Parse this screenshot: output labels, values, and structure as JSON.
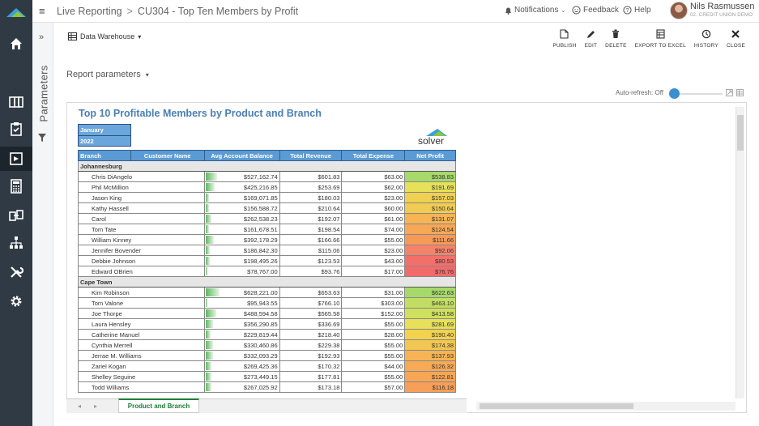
{
  "nav": {
    "breadcrumb_root": "Live Reporting",
    "breadcrumb_sep": ">",
    "breadcrumb_page": "CU304 - Top Ten Members by Profit"
  },
  "topbar": {
    "notifications": "Notifications",
    "feedback": "Feedback",
    "help": "Help",
    "user_name": "Nils Rasmussen",
    "user_org": "02. CREDIT UNION DEMO"
  },
  "sidebar": {
    "parameters_label": "Parameters",
    "items": [
      {
        "icon": "home-icon"
      },
      {
        "icon": "org-chart-icon"
      },
      {
        "icon": "clipboard-icon"
      },
      {
        "icon": "report-icon"
      },
      {
        "icon": "calculator-icon"
      },
      {
        "icon": "data-transfer-icon"
      },
      {
        "icon": "hierarchy-icon"
      },
      {
        "icon": "tools-icon"
      },
      {
        "icon": "gear-icon"
      }
    ]
  },
  "toolbar": {
    "data_source": "Data Warehouse",
    "report_parameters": "Report parameters",
    "auto_refresh": "Auto-refresh: Off",
    "actions": [
      {
        "label": "PUBLISH",
        "icon": "publish-icon"
      },
      {
        "label": "EDIT",
        "icon": "pencil-icon"
      },
      {
        "label": "DELETE",
        "icon": "trash-icon"
      },
      {
        "label": "EXPORT TO EXCEL",
        "icon": "excel-export-icon"
      },
      {
        "label": "HISTORY",
        "icon": "history-icon"
      },
      {
        "label": "CLOSE",
        "icon": "close-icon"
      }
    ]
  },
  "report": {
    "title": "Top 10 Profitable Members by Product and Branch",
    "period_month": "January",
    "period_year": "2022",
    "logo_text": "solver",
    "headers": [
      "Branch",
      "Customer Name",
      "Avg Account Balance",
      "Total Revenue",
      "Total Expense",
      "Net Profit"
    ],
    "groups": [
      {
        "branch": "Johannesburg",
        "rows": [
          {
            "name": "Chris DiAngelo",
            "balance": "$527,162.74",
            "balance_fill": 0.84,
            "revenue": "$601.83",
            "expense": "$63.00",
            "profit": "$538.83",
            "profit_color": "#a6d96a"
          },
          {
            "name": "Phil McMillion",
            "balance": "$425,216.85",
            "balance_fill": 0.68,
            "revenue": "$253.69",
            "expense": "$62.00",
            "profit": "$191.69",
            "profit_color": "#e6e05a"
          },
          {
            "name": "Jason King",
            "balance": "$169,071.85",
            "balance_fill": 0.27,
            "revenue": "$180.03",
            "expense": "$23.00",
            "profit": "$157.03",
            "profit_color": "#f0d050"
          },
          {
            "name": "Kathy Hassell",
            "balance": "$156,588.72",
            "balance_fill": 0.25,
            "revenue": "$210.64",
            "expense": "$60.00",
            "profit": "$150.64",
            "profit_color": "#f2cc52"
          },
          {
            "name": "Carol",
            "balance": "$262,538.23",
            "balance_fill": 0.42,
            "revenue": "$192.07",
            "expense": "$61.00",
            "profit": "$131.07",
            "profit_color": "#f6b454"
          },
          {
            "name": "Tom Tate",
            "balance": "$161,678.51",
            "balance_fill": 0.26,
            "revenue": "$198.54",
            "expense": "$74.00",
            "profit": "$124.54",
            "profit_color": "#f7a856"
          },
          {
            "name": "William Kinney",
            "balance": "$392,178.29",
            "balance_fill": 0.62,
            "revenue": "$166.66",
            "expense": "$55.00",
            "profit": "$111.66",
            "profit_color": "#f79a58"
          },
          {
            "name": "Jennifer Bovender",
            "balance": "$186,842.30",
            "balance_fill": 0.3,
            "revenue": "$115.06",
            "expense": "$23.00",
            "profit": "$92.06",
            "profit_color": "#f5836a"
          },
          {
            "name": "Debbie Johnson",
            "balance": "$198,495.26",
            "balance_fill": 0.32,
            "revenue": "$123.53",
            "expense": "$43.00",
            "profit": "$80.53",
            "profit_color": "#f3706a"
          },
          {
            "name": "Edward OBrien",
            "balance": "$78,767.00",
            "balance_fill": 0.13,
            "revenue": "$93.76",
            "expense": "$17.00",
            "profit": "$76.76",
            "profit_color": "#f26a6a"
          }
        ]
      },
      {
        "branch": "Cape Town",
        "rows": [
          {
            "name": "Kim Robinson",
            "balance": "$628,221.00",
            "balance_fill": 1.0,
            "revenue": "$653.63",
            "expense": "$31.00",
            "profit": "$622.63",
            "profit_color": "#a6d96a"
          },
          {
            "name": "Tom Valone",
            "balance": "$95,943.55",
            "balance_fill": 0.15,
            "revenue": "$766.10",
            "expense": "$303.00",
            "profit": "$463.10",
            "profit_color": "#c2de62"
          },
          {
            "name": "Joe Thorpe",
            "balance": "$488,594.58",
            "balance_fill": 0.78,
            "revenue": "$565.58",
            "expense": "$152.00",
            "profit": "$413.58",
            "profit_color": "#cfe05e"
          },
          {
            "name": "Laura Hensley",
            "balance": "$356,290.85",
            "balance_fill": 0.57,
            "revenue": "$336.69",
            "expense": "$55.00",
            "profit": "$281.69",
            "profit_color": "#e6e05a"
          },
          {
            "name": "Catherine Manuel",
            "balance": "$229,819.44",
            "balance_fill": 0.37,
            "revenue": "$218.40",
            "expense": "$28.00",
            "profit": "$190.40",
            "profit_color": "#f2d24e"
          },
          {
            "name": "Cynthia Merrell",
            "balance": "$330,460.86",
            "balance_fill": 0.53,
            "revenue": "$229.38",
            "expense": "$55.00",
            "profit": "$174.38",
            "profit_color": "#f2c652"
          },
          {
            "name": "Jerrae M. Williams",
            "balance": "$332,093.29",
            "balance_fill": 0.53,
            "revenue": "$192.93",
            "expense": "$55.00",
            "profit": "$137.93",
            "profit_color": "#f6b454"
          },
          {
            "name": "Zariel Kogan",
            "balance": "$269,425.36",
            "balance_fill": 0.43,
            "revenue": "$170.32",
            "expense": "$44.00",
            "profit": "$126.32",
            "profit_color": "#f7aa56"
          },
          {
            "name": "Shelley Seguine",
            "balance": "$273,449.15",
            "balance_fill": 0.44,
            "revenue": "$177.81",
            "expense": "$55.00",
            "profit": "$122.81",
            "profit_color": "#f7a656"
          },
          {
            "name": "Todd Williams",
            "balance": "$267,025.92",
            "balance_fill": 0.43,
            "revenue": "$173.18",
            "expense": "$57.00",
            "profit": "$116.18",
            "profit_color": "#f79f58"
          }
        ]
      }
    ]
  },
  "sheet": {
    "active_tab": "Product and Branch"
  }
}
